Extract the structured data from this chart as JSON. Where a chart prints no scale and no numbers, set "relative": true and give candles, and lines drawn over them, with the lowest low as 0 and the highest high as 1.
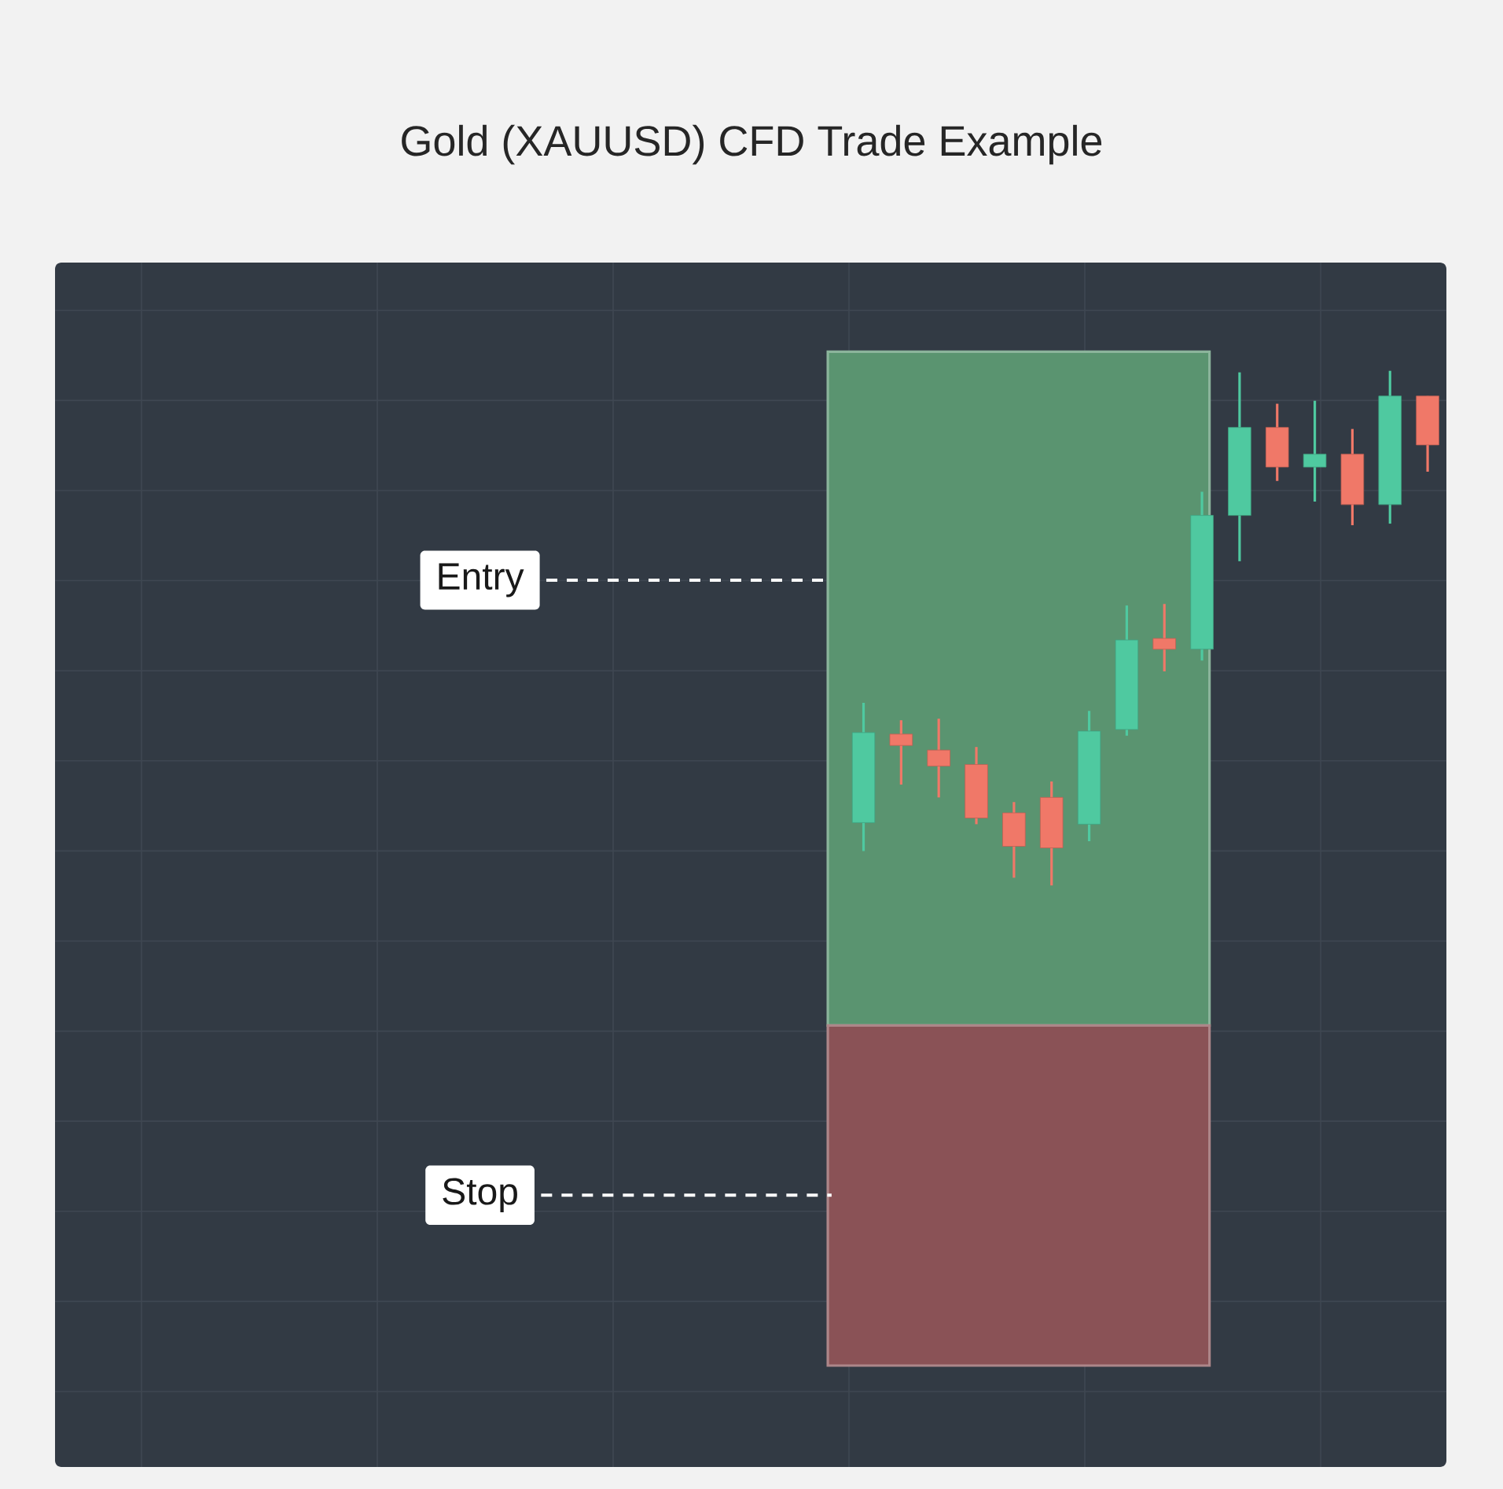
{
  "chart_data": {
    "type": "candlestick",
    "title": "Gold (XAUUSD) CFD Trade Example",
    "relative": true,
    "grid": true,
    "tick_labels": false,
    "categories": [
      null,
      null,
      null,
      null,
      null,
      null,
      null,
      null,
      null,
      null,
      null,
      null,
      null,
      null,
      null,
      null,
      null,
      null,
      null,
      null,
      null,
      null,
      null,
      null,
      null,
      null,
      null,
      null,
      null,
      null,
      null,
      null,
      null,
      null,
      null,
      null,
      null
    ],
    "ohlc": [
      null,
      null,
      null,
      null,
      null,
      null,
      null,
      null,
      null,
      null,
      null,
      null,
      null,
      null,
      null,
      null,
      null,
      null,
      null,
      null,
      null,
      [
        0.122,
        0.355,
        0.067,
        0.297
      ],
      [
        0.294,
        0.321,
        0.196,
        0.272
      ],
      [
        0.263,
        0.324,
        0.171,
        0.232
      ],
      [
        0.235,
        0.269,
        0.119,
        0.131
      ],
      [
        0.141,
        0.162,
        0.015,
        0.076
      ],
      [
        0.171,
        0.202,
        0.0,
        0.073
      ],
      [
        0.119,
        0.339,
        0.086,
        0.3
      ],
      [
        0.303,
        0.544,
        0.291,
        0.477
      ],
      [
        0.48,
        0.547,
        0.416,
        0.459
      ],
      [
        0.459,
        0.765,
        0.437,
        0.719
      ],
      [
        0.719,
        0.997,
        0.63,
        0.89
      ],
      [
        0.89,
        0.936,
        0.786,
        0.813
      ],
      [
        0.813,
        0.942,
        0.746,
        0.838
      ],
      [
        0.838,
        0.887,
        0.7,
        0.74
      ],
      [
        0.74,
        1.0,
        0.703,
        0.951
      ],
      [
        0.951,
        0.951,
        0.804,
        0.856
      ]
    ],
    "bands": [
      {
        "axis": "y",
        "from": -0.272,
        "to": 1.037,
        "color": "#5a9470"
      },
      {
        "axis": "y",
        "from": -0.933,
        "to": -0.272,
        "color": "#8a5256"
      }
    ],
    "ref_lines": [
      {
        "axis": "y",
        "value": 0.593,
        "label": "Entry",
        "line_style": "dashed",
        "color": "#ffffff"
      },
      {
        "axis": "y",
        "value": -0.602,
        "label": "Stop",
        "line_style": "dashed",
        "color": "#ffffff"
      }
    ]
  }
}
